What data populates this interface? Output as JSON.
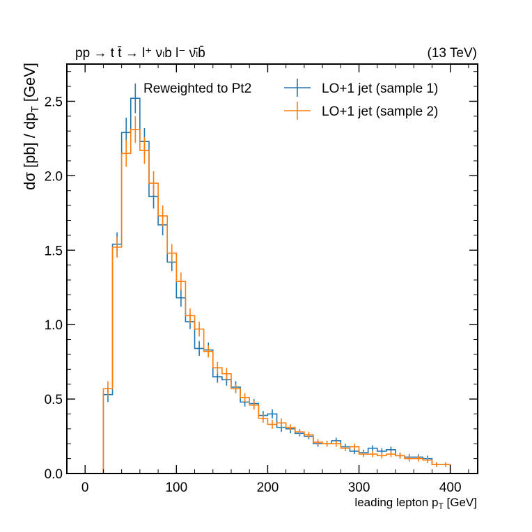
{
  "chart_data": {
    "type": "line",
    "process": "pp → t t̄ → l⁺ νₗb  l⁻ ν̄ₗb̄",
    "energy": "(13 TeV)",
    "annotation": "Reweighted to Pt2",
    "xlabel": "leading lepton p",
    "xlabel_sub": "T",
    "xlabel_unit": " [GeV]",
    "ylabel": "dσ [pb] / dp",
    "ylabel_sub": "T",
    "ylabel_unit": " [GeV]",
    "xlim": [
      -20,
      430
    ],
    "ylim": [
      0,
      2.75
    ],
    "x_ticks": [
      0,
      100,
      200,
      300,
      400
    ],
    "x_tick_labels": [
      "0",
      "100",
      "200",
      "300",
      "400"
    ],
    "y_ticks": [
      0,
      0.5,
      1.0,
      1.5,
      2.0,
      2.5
    ],
    "y_tick_labels": [
      "0.0",
      "0.5",
      "1.0",
      "1.5",
      "2.0",
      "2.5"
    ],
    "legend_position": "top-right",
    "bin_edges": [
      20,
      30,
      40,
      50,
      60,
      70,
      80,
      90,
      100,
      110,
      120,
      130,
      140,
      150,
      160,
      170,
      180,
      190,
      200,
      210,
      220,
      230,
      240,
      250,
      260,
      270,
      280,
      290,
      300,
      310,
      320,
      330,
      340,
      350,
      360,
      370,
      380,
      390,
      400
    ],
    "series": [
      {
        "name": "LO+1 jet (sample 1)",
        "color": "#1f77b4",
        "values": [
          0.53,
          1.54,
          2.29,
          2.52,
          2.23,
          1.86,
          1.67,
          1.42,
          1.18,
          1.02,
          0.84,
          0.83,
          0.65,
          0.63,
          0.58,
          0.48,
          0.47,
          0.39,
          0.4,
          0.31,
          0.3,
          0.27,
          0.25,
          0.2,
          0.2,
          0.22,
          0.18,
          0.15,
          0.14,
          0.17,
          0.15,
          0.16,
          0.12,
          0.11,
          0.11,
          0.1,
          0.06,
          0.06
        ],
        "errors": [
          0.05,
          0.08,
          0.1,
          0.1,
          0.09,
          0.08,
          0.07,
          0.06,
          0.06,
          0.05,
          0.05,
          0.05,
          0.04,
          0.04,
          0.04,
          0.03,
          0.03,
          0.03,
          0.03,
          0.03,
          0.03,
          0.02,
          0.02,
          0.02,
          0.02,
          0.02,
          0.02,
          0.02,
          0.02,
          0.02,
          0.02,
          0.02,
          0.02,
          0.02,
          0.02,
          0.02,
          0.015,
          0.015
        ]
      },
      {
        "name": "LO+1 jet (sample 2)",
        "color": "#ff7f0e",
        "values": [
          0.57,
          1.52,
          2.15,
          2.31,
          2.17,
          1.95,
          1.73,
          1.48,
          1.29,
          1.06,
          0.97,
          0.82,
          0.71,
          0.67,
          0.57,
          0.51,
          0.46,
          0.37,
          0.33,
          0.34,
          0.31,
          0.28,
          0.26,
          0.21,
          0.2,
          0.2,
          0.17,
          0.18,
          0.13,
          0.13,
          0.12,
          0.13,
          0.12,
          0.1,
          0.1,
          0.09,
          0.06,
          0.06
        ],
        "errors": [
          0.05,
          0.07,
          0.09,
          0.09,
          0.09,
          0.08,
          0.07,
          0.06,
          0.06,
          0.05,
          0.05,
          0.04,
          0.04,
          0.04,
          0.03,
          0.03,
          0.03,
          0.03,
          0.03,
          0.03,
          0.02,
          0.02,
          0.02,
          0.02,
          0.02,
          0.02,
          0.02,
          0.02,
          0.02,
          0.02,
          0.02,
          0.02,
          0.02,
          0.02,
          0.02,
          0.02,
          0.015,
          0.015
        ]
      }
    ]
  }
}
